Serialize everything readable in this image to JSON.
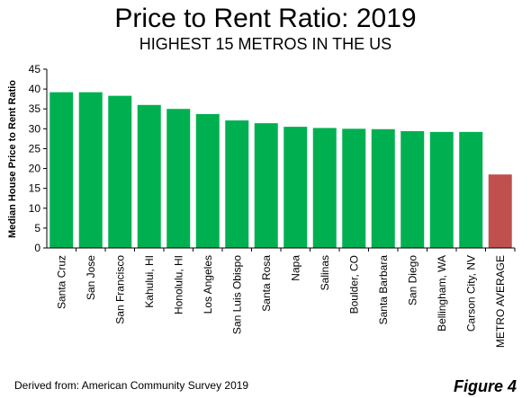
{
  "header": {
    "title": "Price to Rent Ratio: 2019",
    "subtitle": "HIGHEST 15 METROS IN THE US"
  },
  "footer": {
    "source": "Derived from: American Community Survey 2019",
    "figure_label": "Figure 4"
  },
  "colors": {
    "metro_bar": "#00b050",
    "average_bar": "#c0504d",
    "axis": "#000000"
  },
  "chart_data": {
    "type": "bar",
    "title": "Price to Rent Ratio: 2019",
    "subtitle": "HIGHEST 15 METROS IN THE US",
    "ylabel": "Median House Price  to Rent Ratio",
    "xlabel": "",
    "ylim": [
      0,
      45
    ],
    "yticks": [
      0,
      5,
      10,
      15,
      20,
      25,
      30,
      35,
      40,
      45
    ],
    "grid": false,
    "legend": "none",
    "categories": [
      "Santa Cruz",
      "San Jose",
      "San Francisco",
      "Kahului, HI",
      "Honolulu, HI",
      "Los Angeles",
      "San Luis Obispo",
      "Santa Rosa",
      "Napa",
      "Salinas",
      "Boulder, CO",
      "Santa Barbara",
      "San Diego",
      "Bellingham, WA",
      "Carson City, NV",
      "METRO AVERAGE"
    ],
    "values": [
      39.2,
      39.2,
      38.3,
      36.0,
      35.0,
      33.7,
      32.1,
      31.4,
      30.5,
      30.2,
      30.0,
      29.9,
      29.4,
      29.2,
      29.2,
      18.5
    ],
    "bar_colors": [
      "#00b050",
      "#00b050",
      "#00b050",
      "#00b050",
      "#00b050",
      "#00b050",
      "#00b050",
      "#00b050",
      "#00b050",
      "#00b050",
      "#00b050",
      "#00b050",
      "#00b050",
      "#00b050",
      "#00b050",
      "#c0504d"
    ]
  }
}
